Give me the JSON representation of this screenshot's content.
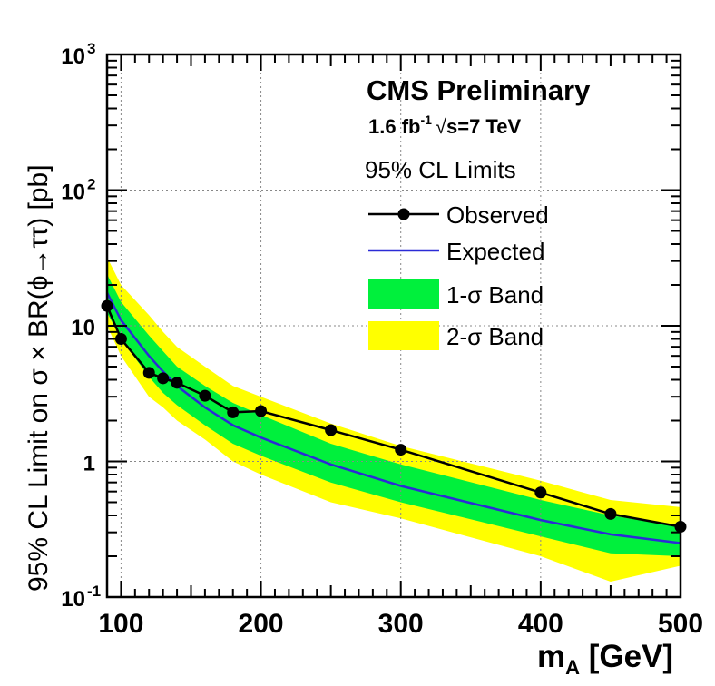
{
  "chart_data": {
    "type": "line",
    "title": "CMS Preliminary",
    "subtitle": {
      "luminosity": "1.6 fb",
      "lumi_exp": "-1",
      "energy": "s=7 TeV"
    },
    "xlabel": {
      "main": "m",
      "sub": "A",
      "unit": " [GeV]"
    },
    "ylabel": "95% CL Limit on σ × BR(ϕ→ττ) [pb]",
    "xlim": [
      90,
      500
    ],
    "ylim": [
      0.1,
      1000
    ],
    "yscale": "log",
    "x_ticks": [
      {
        "value": 100,
        "label": "100"
      },
      {
        "value": 200,
        "label": "200"
      },
      {
        "value": 300,
        "label": "300"
      },
      {
        "value": 400,
        "label": "400"
      },
      {
        "value": 500,
        "label": "500"
      }
    ],
    "y_ticks": [
      {
        "value": 0.1,
        "base": "10",
        "exp": "-1"
      },
      {
        "value": 1,
        "base": "1",
        "exp": ""
      },
      {
        "value": 10,
        "base": "10",
        "exp": ""
      },
      {
        "value": 100,
        "base": "10",
        "exp": "2"
      },
      {
        "value": 1000,
        "base": "10",
        "exp": "3"
      }
    ],
    "grid": true,
    "legend": {
      "header": "95% CL Limits",
      "position": "top-right",
      "entries": [
        {
          "key": "observed",
          "label": "Observed"
        },
        {
          "key": "expected",
          "label": "Expected"
        },
        {
          "key": "band1",
          "label": "1-σ Band"
        },
        {
          "key": "band2",
          "label": "2-σ Band"
        }
      ]
    },
    "colors": {
      "observed": "#000000",
      "expected": "#2b2bd6",
      "band1": "#00f03c",
      "band2": "#ffff00",
      "grid": "#888888"
    },
    "mass_points": [
      90,
      100,
      120,
      130,
      140,
      160,
      180,
      200,
      250,
      300,
      400,
      450,
      500
    ],
    "series": [
      {
        "name": "Observed",
        "x": [
          90,
          100,
          120,
          130,
          140,
          160,
          180,
          200,
          250,
          300,
          400,
          450,
          500
        ],
        "values": [
          14.0,
          8.0,
          4.5,
          4.1,
          3.8,
          3.05,
          2.3,
          2.35,
          1.7,
          1.22,
          0.59,
          0.41,
          0.33
        ]
      },
      {
        "name": "Expected",
        "x": [
          90,
          100,
          120,
          130,
          140,
          160,
          180,
          200,
          250,
          300,
          400,
          450,
          500
        ],
        "values": [
          17.5,
          11.0,
          6.0,
          4.6,
          3.6,
          2.5,
          1.85,
          1.5,
          0.95,
          0.66,
          0.37,
          0.29,
          0.25
        ]
      },
      {
        "name": "1-σ Band",
        "x": [
          90,
          100,
          120,
          130,
          140,
          160,
          180,
          200,
          250,
          300,
          400,
          450,
          500
        ],
        "low": [
          12.5,
          8.0,
          4.2,
          3.2,
          2.6,
          1.85,
          1.35,
          1.1,
          0.7,
          0.5,
          0.28,
          0.21,
          0.2
        ],
        "high": [
          24.0,
          15.0,
          8.5,
          6.5,
          5.0,
          3.6,
          2.7,
          2.2,
          1.35,
          0.95,
          0.52,
          0.4,
          0.33
        ]
      },
      {
        "name": "2-σ Band",
        "x": [
          90,
          100,
          120,
          130,
          140,
          160,
          180,
          200,
          250,
          300,
          400,
          450,
          500
        ],
        "low": [
          10.0,
          6.0,
          3.0,
          2.5,
          2.0,
          1.45,
          1.0,
          0.8,
          0.5,
          0.38,
          0.2,
          0.13,
          0.17
        ],
        "high": [
          32.0,
          20.0,
          12.0,
          9.0,
          7.0,
          5.0,
          3.6,
          3.0,
          1.9,
          1.3,
          0.72,
          0.52,
          0.46
        ]
      }
    ]
  }
}
